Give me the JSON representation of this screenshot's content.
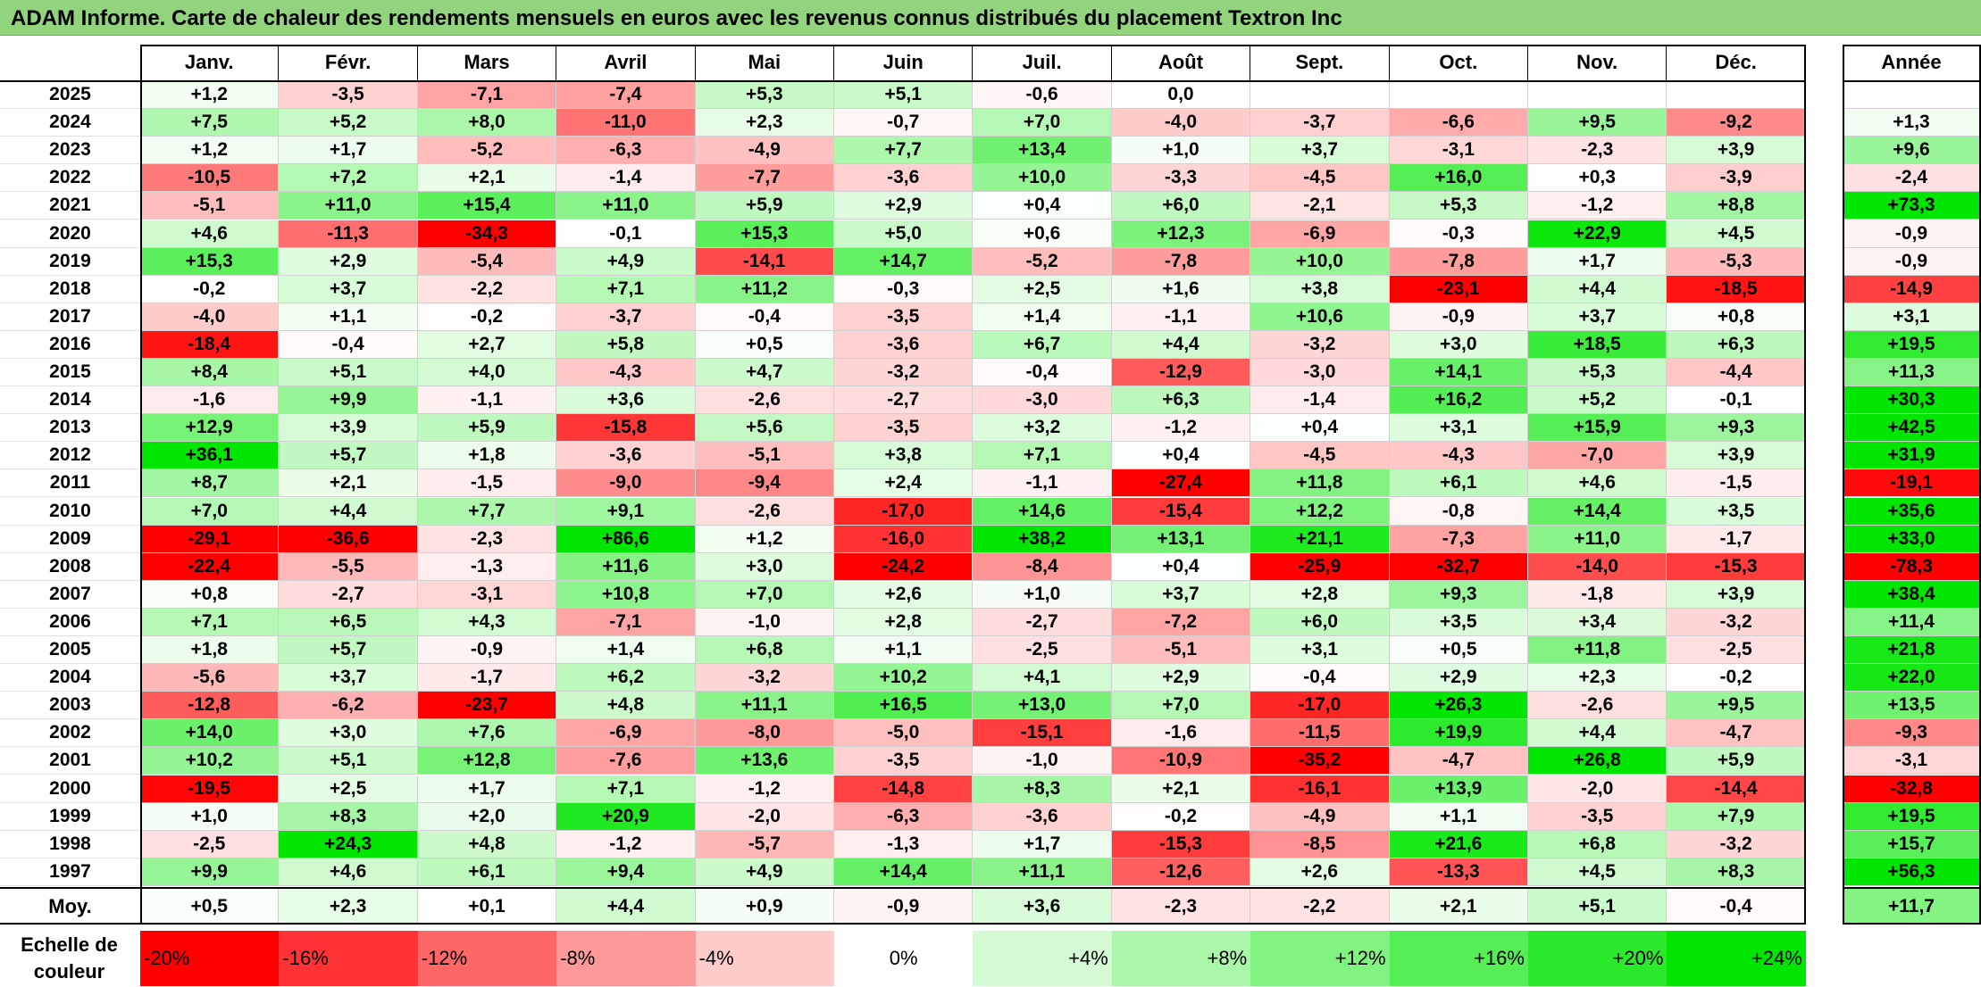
{
  "title": "ADAM Informe. Carte de chaleur des rendements mensuels en euros avec les revenus connus distribués du placement Textron Inc",
  "months": [
    "Janv.",
    "Févr.",
    "Mars",
    "Avril",
    "Mai",
    "Juin",
    "Juil.",
    "Août",
    "Sept.",
    "Oct.",
    "Nov.",
    "Déc."
  ],
  "annual_header": "Année",
  "average_label": "Moy.",
  "scale_label": "Echelle de couleur",
  "scale_steps": [
    "-20%",
    "-16%",
    "-12%",
    "-8%",
    "-4%",
    "0%",
    "+4%",
    "+8%",
    "+12%",
    "+16%",
    "+20%",
    "+24%"
  ],
  "colors": {
    "negative": "#ff0000",
    "neutral": "#ffffff",
    "positive": "#00e600",
    "title_bg": "#92d37e"
  },
  "chart_data": {
    "type": "heatmap",
    "title": "ADAM Informe. Carte de chaleur des rendements mensuels en euros avec les revenus connus distribués du placement Textron Inc",
    "x": [
      "Janv.",
      "Févr.",
      "Mars",
      "Avril",
      "Mai",
      "Juin",
      "Juil.",
      "Août",
      "Sept.",
      "Oct.",
      "Nov.",
      "Déc."
    ],
    "rows": [
      {
        "year": "2025",
        "values": [
          "+1,2",
          "-3,5",
          "-7,1",
          "-7,4",
          "+5,3",
          "+5,1",
          "-0,6",
          "0,0",
          "",
          "",
          "",
          ""
        ],
        "annual": ""
      },
      {
        "year": "2024",
        "values": [
          "+7,5",
          "+5,2",
          "+8,0",
          "-11,0",
          "+2,3",
          "-0,7",
          "+7,0",
          "-4,0",
          "-3,7",
          "-6,6",
          "+9,5",
          "-9,2"
        ],
        "annual": "+1,3"
      },
      {
        "year": "2023",
        "values": [
          "+1,2",
          "+1,7",
          "-5,2",
          "-6,3",
          "-4,9",
          "+7,7",
          "+13,4",
          "+1,0",
          "+3,7",
          "-3,1",
          "-2,3",
          "+3,9"
        ],
        "annual": "+9,6"
      },
      {
        "year": "2022",
        "values": [
          "-10,5",
          "+7,2",
          "+2,1",
          "-1,4",
          "-7,7",
          "-3,6",
          "+10,0",
          "-3,3",
          "-4,5",
          "+16,0",
          "+0,3",
          "-3,9"
        ],
        "annual": "-2,4"
      },
      {
        "year": "2021",
        "values": [
          "-5,1",
          "+11,0",
          "+15,4",
          "+11,0",
          "+5,9",
          "+2,9",
          "+0,4",
          "+6,0",
          "-2,1",
          "+5,3",
          "-1,2",
          "+8,8"
        ],
        "annual": "+73,3"
      },
      {
        "year": "2020",
        "values": [
          "+4,6",
          "-11,3",
          "-34,3",
          "-0,1",
          "+15,3",
          "+5,0",
          "+0,6",
          "+12,3",
          "-6,9",
          "-0,3",
          "+22,9",
          "+4,5"
        ],
        "annual": "-0,9"
      },
      {
        "year": "2019",
        "values": [
          "+15,3",
          "+2,9",
          "-5,4",
          "+4,9",
          "-14,1",
          "+14,7",
          "-5,2",
          "-7,8",
          "+10,0",
          "-7,8",
          "+1,7",
          "-5,3"
        ],
        "annual": "-0,9"
      },
      {
        "year": "2018",
        "values": [
          "-0,2",
          "+3,7",
          "-2,2",
          "+7,1",
          "+11,2",
          "-0,3",
          "+2,5",
          "+1,6",
          "+3,8",
          "-23,1",
          "+4,4",
          "-18,5"
        ],
        "annual": "-14,9"
      },
      {
        "year": "2017",
        "values": [
          "-4,0",
          "+1,1",
          "-0,2",
          "-3,7",
          "-0,4",
          "-3,5",
          "+1,4",
          "-1,1",
          "+10,6",
          "-0,9",
          "+3,7",
          "+0,8"
        ],
        "annual": "+3,1"
      },
      {
        "year": "2016",
        "values": [
          "-18,4",
          "-0,4",
          "+2,7",
          "+5,8",
          "+0,5",
          "-3,6",
          "+6,7",
          "+4,4",
          "-3,2",
          "+3,0",
          "+18,5",
          "+6,3"
        ],
        "annual": "+19,5"
      },
      {
        "year": "2015",
        "values": [
          "+8,4",
          "+5,1",
          "+4,0",
          "-4,3",
          "+4,7",
          "-3,2",
          "-0,4",
          "-12,9",
          "-3,0",
          "+14,1",
          "+5,3",
          "-4,4"
        ],
        "annual": "+11,3"
      },
      {
        "year": "2014",
        "values": [
          "-1,6",
          "+9,9",
          "-1,1",
          "+3,6",
          "-2,6",
          "-2,7",
          "-3,0",
          "+6,3",
          "-1,4",
          "+16,2",
          "+5,2",
          "-0,1"
        ],
        "annual": "+30,3"
      },
      {
        "year": "2013",
        "values": [
          "+12,9",
          "+3,9",
          "+5,9",
          "-15,8",
          "+5,6",
          "-3,5",
          "+3,2",
          "-1,2",
          "+0,4",
          "+3,1",
          "+15,9",
          "+9,3"
        ],
        "annual": "+42,5"
      },
      {
        "year": "2012",
        "values": [
          "+36,1",
          "+5,7",
          "+1,8",
          "-3,6",
          "-5,1",
          "+3,8",
          "+7,1",
          "+0,4",
          "-4,5",
          "-4,3",
          "-7,0",
          "+3,9"
        ],
        "annual": "+31,9"
      },
      {
        "year": "2011",
        "values": [
          "+8,7",
          "+2,1",
          "-1,5",
          "-9,0",
          "-9,4",
          "+2,4",
          "-1,1",
          "-27,4",
          "+11,8",
          "+6,1",
          "+4,6",
          "-1,5"
        ],
        "annual": "-19,1"
      },
      {
        "year": "2010",
        "values": [
          "+7,0",
          "+4,4",
          "+7,7",
          "+9,1",
          "-2,6",
          "-17,0",
          "+14,6",
          "-15,4",
          "+12,2",
          "-0,8",
          "+14,4",
          "+3,5"
        ],
        "annual": "+35,6"
      },
      {
        "year": "2009",
        "values": [
          "-29,1",
          "-36,6",
          "-2,3",
          "+86,6",
          "+1,2",
          "-16,0",
          "+38,2",
          "+13,1",
          "+21,1",
          "-7,3",
          "+11,0",
          "-1,7"
        ],
        "annual": "+33,0"
      },
      {
        "year": "2008",
        "values": [
          "-22,4",
          "-5,5",
          "-1,3",
          "+11,6",
          "+3,0",
          "-24,2",
          "-8,4",
          "+0,4",
          "-25,9",
          "-32,7",
          "-14,0",
          "-15,3"
        ],
        "annual": "-78,3"
      },
      {
        "year": "2007",
        "values": [
          "+0,8",
          "-2,7",
          "-3,1",
          "+10,8",
          "+7,0",
          "+2,6",
          "+1,0",
          "+3,7",
          "+2,8",
          "+9,3",
          "-1,8",
          "+3,9"
        ],
        "annual": "+38,4"
      },
      {
        "year": "2006",
        "values": [
          "+7,1",
          "+6,5",
          "+4,3",
          "-7,1",
          "-1,0",
          "+2,8",
          "-2,7",
          "-7,2",
          "+6,0",
          "+3,5",
          "+3,4",
          "-3,2"
        ],
        "annual": "+11,4"
      },
      {
        "year": "2005",
        "values": [
          "+1,8",
          "+5,7",
          "-0,9",
          "+1,4",
          "+6,8",
          "+1,1",
          "-2,5",
          "-5,1",
          "+3,1",
          "+0,5",
          "+11,8",
          "-2,5"
        ],
        "annual": "+21,8"
      },
      {
        "year": "2004",
        "values": [
          "-5,6",
          "+3,7",
          "-1,7",
          "+6,2",
          "-3,2",
          "+10,2",
          "+4,1",
          "+2,9",
          "-0,4",
          "+2,9",
          "+2,3",
          "-0,2"
        ],
        "annual": "+22,0"
      },
      {
        "year": "2003",
        "values": [
          "-12,8",
          "-6,2",
          "-23,7",
          "+4,8",
          "+11,1",
          "+16,5",
          "+13,0",
          "+7,0",
          "-17,0",
          "+26,3",
          "-2,6",
          "+9,5"
        ],
        "annual": "+13,5"
      },
      {
        "year": "2002",
        "values": [
          "+14,0",
          "+3,0",
          "+7,6",
          "-6,9",
          "-8,0",
          "-5,0",
          "-15,1",
          "-1,6",
          "-11,5",
          "+19,9",
          "+4,4",
          "-4,7"
        ],
        "annual": "-9,3"
      },
      {
        "year": "2001",
        "values": [
          "+10,2",
          "+5,1",
          "+12,8",
          "-7,6",
          "+13,6",
          "-3,5",
          "-1,0",
          "-10,9",
          "-35,2",
          "-4,7",
          "+26,8",
          "+5,9"
        ],
        "annual": "-3,1"
      },
      {
        "year": "2000",
        "values": [
          "-19,5",
          "+2,5",
          "+1,7",
          "+7,1",
          "-1,2",
          "-14,8",
          "+8,3",
          "+2,1",
          "-16,1",
          "+13,9",
          "-2,0",
          "-14,4"
        ],
        "annual": "-32,8"
      },
      {
        "year": "1999",
        "values": [
          "+1,0",
          "+8,3",
          "+2,0",
          "+20,9",
          "-2,0",
          "-6,3",
          "-3,6",
          "-0,2",
          "-4,9",
          "+1,1",
          "-3,5",
          "+7,9"
        ],
        "annual": "+19,5"
      },
      {
        "year": "1998",
        "values": [
          "-2,5",
          "+24,3",
          "+4,8",
          "-1,2",
          "-5,7",
          "-1,3",
          "+1,7",
          "-15,3",
          "-8,5",
          "+21,6",
          "+6,8",
          "-3,2"
        ],
        "annual": "+15,7"
      },
      {
        "year": "1997",
        "values": [
          "+9,9",
          "+4,6",
          "+6,1",
          "+9,4",
          "+4,9",
          "+14,4",
          "+11,1",
          "-12,6",
          "+2,6",
          "-13,3",
          "+4,5",
          "+8,3"
        ],
        "annual": "+56,3"
      }
    ],
    "average": {
      "values": [
        "+0,5",
        "+2,3",
        "+0,1",
        "+4,4",
        "+0,9",
        "-0,9",
        "+3,6",
        "-2,3",
        "-2,2",
        "+2,1",
        "+5,1",
        "-0,4"
      ],
      "annual": "+11,7"
    },
    "color_scale": {
      "min": -20,
      "max": 24,
      "neutral": 0
    }
  }
}
